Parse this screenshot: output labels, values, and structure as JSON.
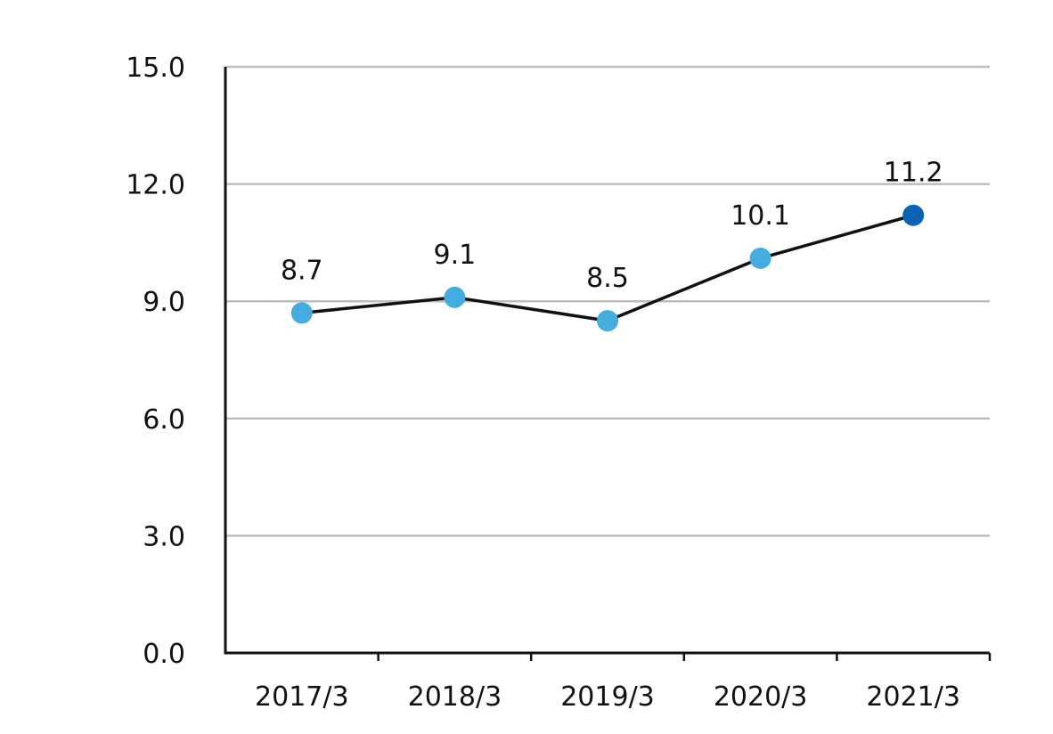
{
  "chart_data": {
    "type": "line",
    "categories": [
      "2017/3",
      "2018/3",
      "2019/3",
      "2020/3",
      "2021/3"
    ],
    "values": [
      8.7,
      9.1,
      8.5,
      10.1,
      11.2
    ],
    "data_labels": [
      "8.7",
      "9.1",
      "8.5",
      "10.1",
      "11.2"
    ],
    "y_ticks": [
      "0.0",
      "3.0",
      "6.0",
      "9.0",
      "12.0",
      "15.0"
    ],
    "ylim": [
      0,
      15
    ],
    "grid": true,
    "legend": "none",
    "colors": {
      "line": "#111111",
      "point": "#45ace0",
      "highlight_point": "#0b63b3",
      "grid": "#bdbdbd",
      "axis": "#111111"
    }
  }
}
